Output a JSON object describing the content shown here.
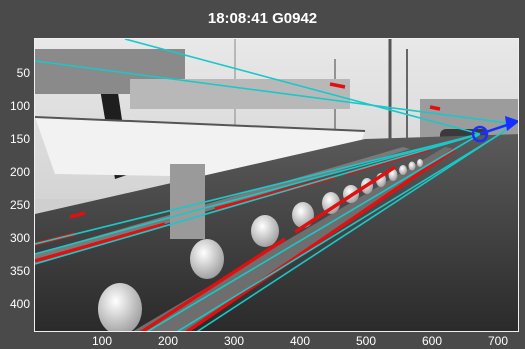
{
  "title": "18:08:41 G0942",
  "axes": {
    "y_ticks": [
      "50",
      "100",
      "150",
      "200",
      "250",
      "300",
      "350",
      "400"
    ],
    "x_ticks": [
      "100",
      "200",
      "300",
      "400",
      "500",
      "600",
      "700"
    ]
  },
  "colors": {
    "background": "#4a4a4a",
    "cyan_lines": "#19c8c8",
    "red_lines": "#e01010",
    "marker": "#1530ff"
  },
  "icons": {
    "vanishing_point_marker": "blue-circle",
    "direction_arrow": "blue-arrow"
  }
}
